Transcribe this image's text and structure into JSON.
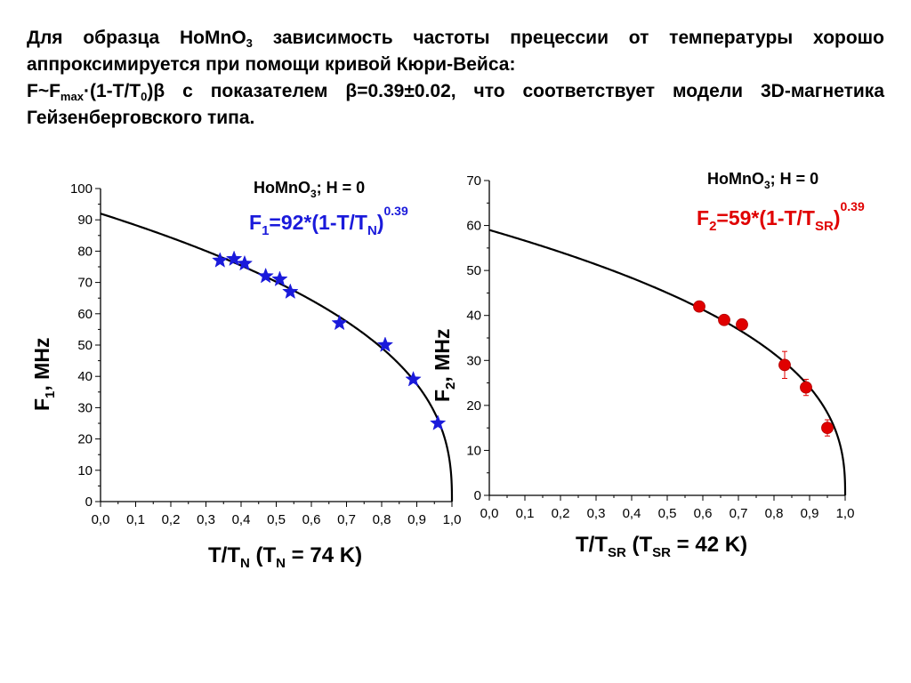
{
  "intro": {
    "line1": {
      "a": "Для образца HoMnO",
      "b": "3",
      "c": " зависимость частоты прецессии от температуры хорошо аппроксимируется при помощи кривой Кюри-Вейса:"
    },
    "line2": {
      "a": " F~F",
      "b": "max",
      "c": "·(1-T/T",
      "d": "0",
      "e": ")β с показателем β=0.39±0.02, что соответствует модели 3D-магнетика Гейзенберговского типа."
    }
  },
  "chart_data": [
    {
      "type": "scatter",
      "series": [
        {
          "marker": "star",
          "color": "#1a1adb",
          "x": [
            0.34,
            0.38,
            0.41,
            0.47,
            0.51,
            0.54,
            0.68,
            0.81,
            0.89,
            0.96
          ],
          "y": [
            77,
            77.5,
            76,
            72,
            71,
            67,
            57,
            50,
            39,
            25
          ]
        }
      ],
      "fit": {
        "fmax": 92,
        "beta": 0.39,
        "color": "#000000"
      },
      "xlim": [
        0,
        1
      ],
      "ylim": [
        0,
        100
      ],
      "xticks": [
        "0,0",
        "0,1",
        "0,2",
        "0,3",
        "0,4",
        "0,5",
        "0,6",
        "0,7",
        "0,8",
        "0,9",
        "1,0"
      ],
      "yticks": [
        "0",
        "10",
        "20",
        "30",
        "40",
        "50",
        "60",
        "70",
        "80",
        "90",
        "100"
      ],
      "xlabel": {
        "a": "T/T",
        "b": "N",
        "c": " (T",
        "d": "N",
        "e": " = 74 K)"
      },
      "ylabel": {
        "a": "F",
        "b": "1",
        "c": ", MHz"
      },
      "sample_label": {
        "a": "HoMnO",
        "b": "3",
        "c": "; H = 0"
      },
      "formula": {
        "a": "F",
        "b": "1",
        "c": "=92*(1-T/T",
        "d": "N",
        "e": ")",
        "f": "0.39",
        "color": "#1a1adb"
      }
    },
    {
      "type": "scatter",
      "series": [
        {
          "marker": "circle",
          "color": "#e00000",
          "x": [
            0.59,
            0.66,
            0.71,
            0.83,
            0.89,
            0.95
          ],
          "y": [
            42,
            39,
            38,
            29,
            24,
            15
          ],
          "yerr": [
            0.8,
            0.8,
            0.8,
            3,
            1.8,
            1.8
          ]
        }
      ],
      "fit": {
        "fmax": 59,
        "beta": 0.39,
        "color": "#000000"
      },
      "xlim": [
        0,
        1
      ],
      "ylim": [
        0,
        70
      ],
      "xticks": [
        "0,0",
        "0,1",
        "0,2",
        "0,3",
        "0,4",
        "0,5",
        "0,6",
        "0,7",
        "0,8",
        "0,9",
        "1,0"
      ],
      "yticks": [
        "0",
        "10",
        "20",
        "30",
        "40",
        "50",
        "60",
        "70"
      ],
      "xlabel": {
        "a": "T/T",
        "b": "SR",
        "c": " (T",
        "d": "SR",
        "e": " = 42 K)"
      },
      "ylabel": {
        "a": "F",
        "b": "2",
        "c": ", MHz"
      },
      "sample_label": {
        "a": "HoMnO",
        "b": "3",
        "c": "; H = 0"
      },
      "formula": {
        "a": "F",
        "b": "2",
        "c": "=59*(1-T/T",
        "d": "SR",
        "e": ")",
        "f": "0.39",
        "color": "#e00000"
      }
    }
  ]
}
